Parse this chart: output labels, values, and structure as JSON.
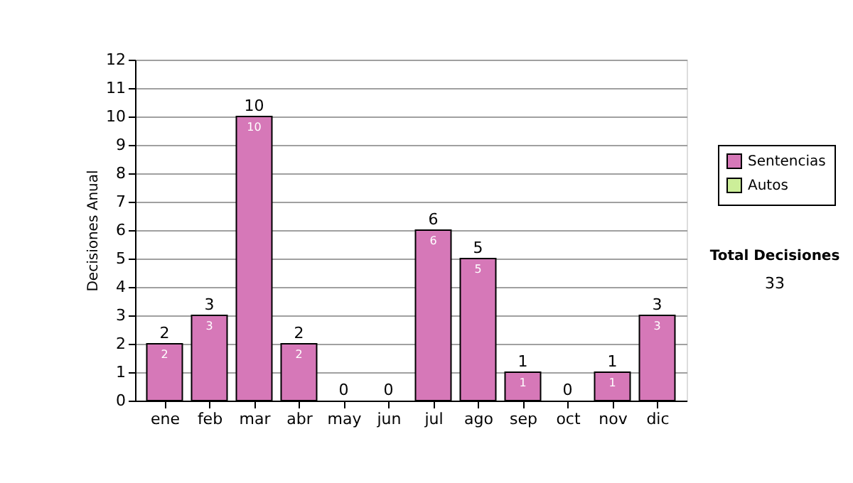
{
  "chart_data": {
    "type": "bar",
    "stacked": true,
    "ylabel": "Decisiones Anual",
    "categories": [
      "ene",
      "feb",
      "mar",
      "abr",
      "may",
      "jun",
      "jul",
      "ago",
      "sep",
      "oct",
      "nov",
      "dic"
    ],
    "series": [
      {
        "name": "Sentencias",
        "color": "#d678b8",
        "values": [
          2,
          3,
          10,
          2,
          0,
          0,
          6,
          5,
          1,
          0,
          1,
          3
        ],
        "value_labels": [
          "2",
          "3",
          "10",
          "2",
          null,
          null,
          "6",
          "5",
          "1",
          null,
          "1",
          "3"
        ]
      },
      {
        "name": "Autos",
        "color": "#ccee99",
        "values": [
          0,
          0,
          0,
          0,
          0,
          0,
          0,
          0,
          0,
          0,
          0,
          0
        ]
      }
    ],
    "totals": [
      "2",
      "3",
      "10",
      "2",
      "0",
      "0",
      "6",
      "5",
      "1",
      "0",
      "1",
      "3"
    ],
    "ylim": [
      0,
      12
    ],
    "yticks": [
      0,
      1,
      2,
      3,
      4,
      5,
      6,
      7,
      8,
      9,
      10,
      11,
      12
    ],
    "grid": "y",
    "legend": "right",
    "annotations": [
      "Total Decisiones",
      "33"
    ]
  }
}
